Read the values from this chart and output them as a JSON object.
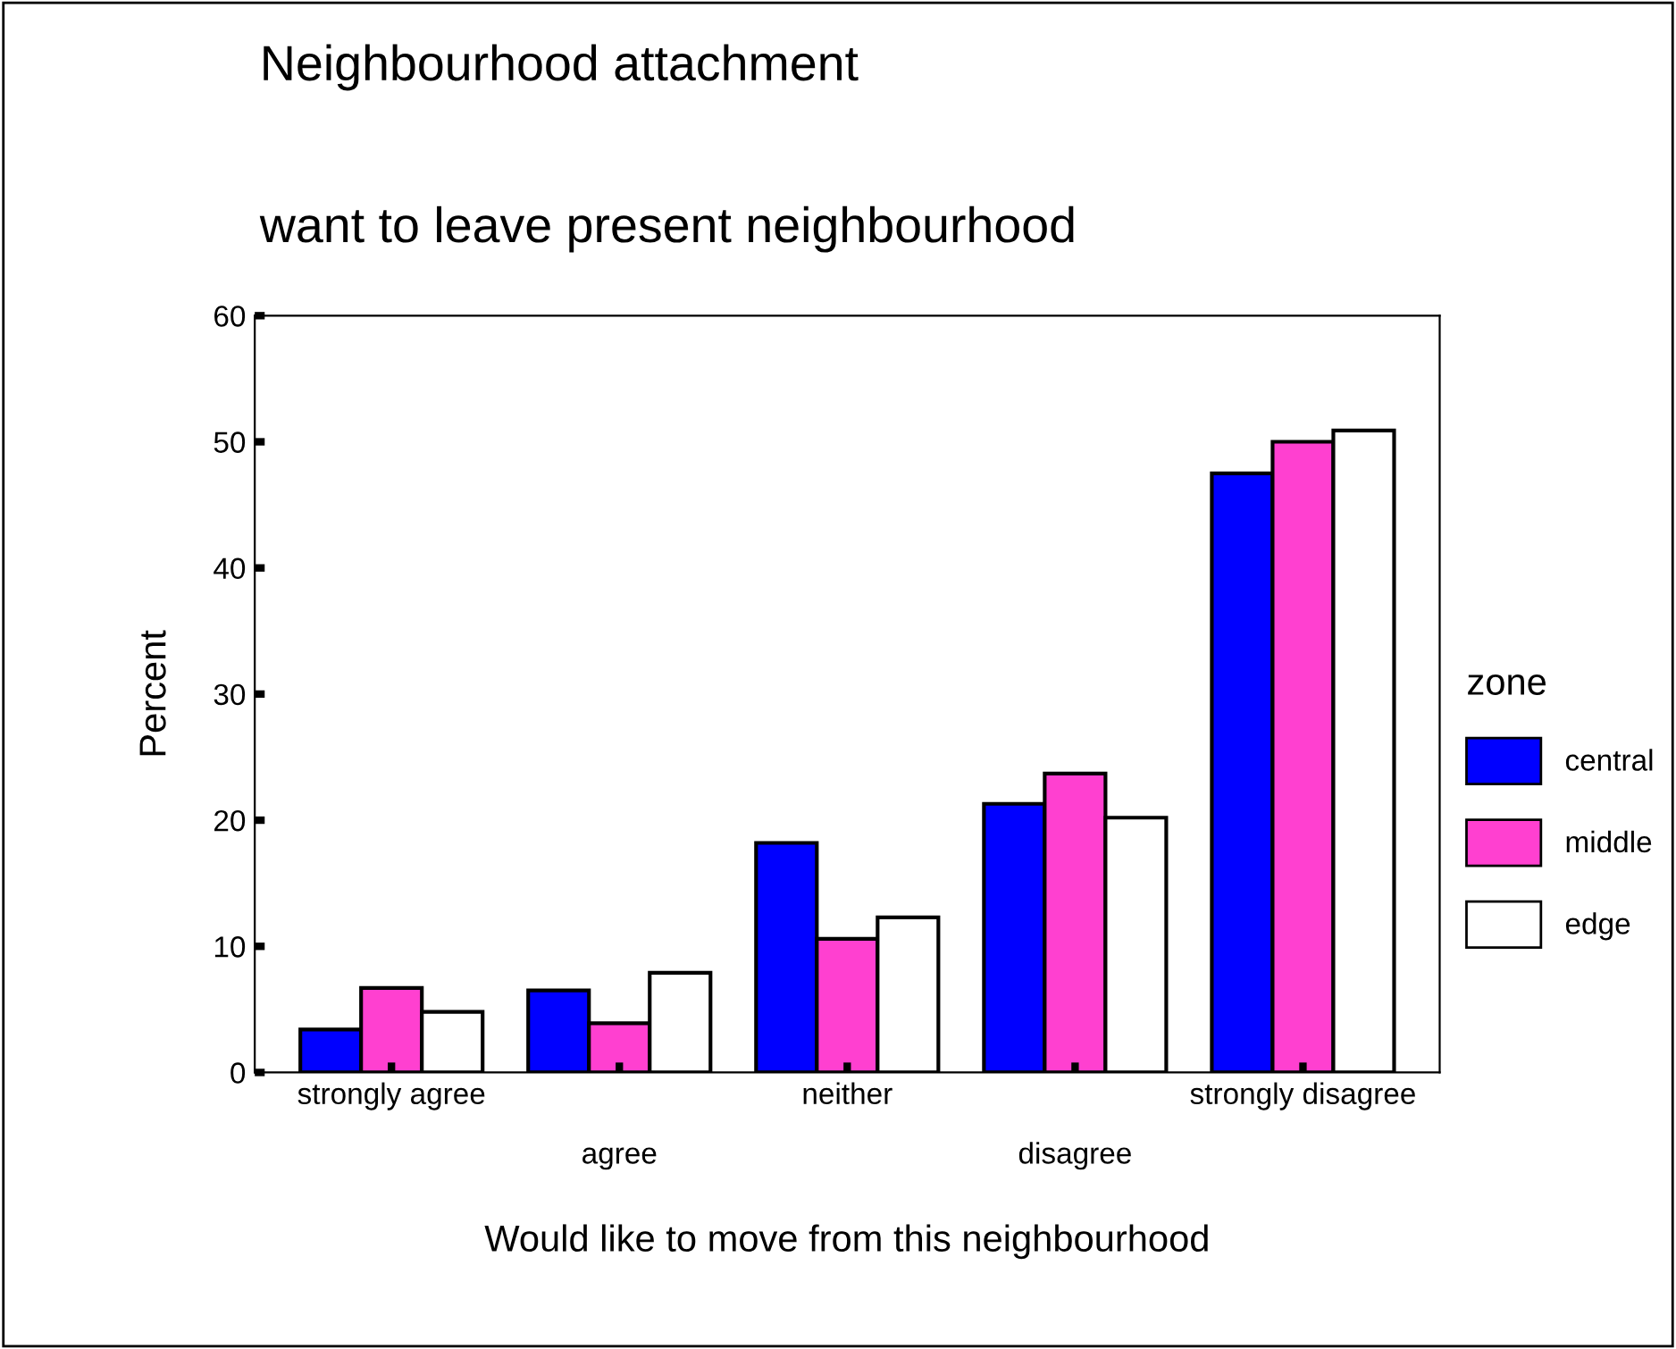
{
  "chart_data": {
    "type": "bar",
    "title": "Neighbourhood attachment",
    "subtitle": "want to leave present neighbourhood",
    "xlabel": "Would like to move from this neighbourhood",
    "ylabel": "Percent",
    "legend_title": "zone",
    "categories": [
      "strongly agree",
      "agree",
      "neither",
      "disagree",
      "strongly disagree"
    ],
    "series": [
      {
        "name": "central",
        "color": "#0000ff",
        "values": [
          3.4,
          6.5,
          18.2,
          21.3,
          47.5
        ]
      },
      {
        "name": "middle",
        "color": "#ff40d0",
        "values": [
          6.7,
          3.9,
          10.6,
          23.7,
          50.0
        ]
      },
      {
        "name": "edge",
        "color": "#ffffff",
        "values": [
          4.8,
          7.9,
          12.3,
          20.2,
          50.9
        ]
      }
    ],
    "ylim": [
      0,
      60
    ],
    "yticks": [
      0,
      10,
      20,
      30,
      40,
      50,
      60
    ],
    "grid": false,
    "legend": "right"
  }
}
